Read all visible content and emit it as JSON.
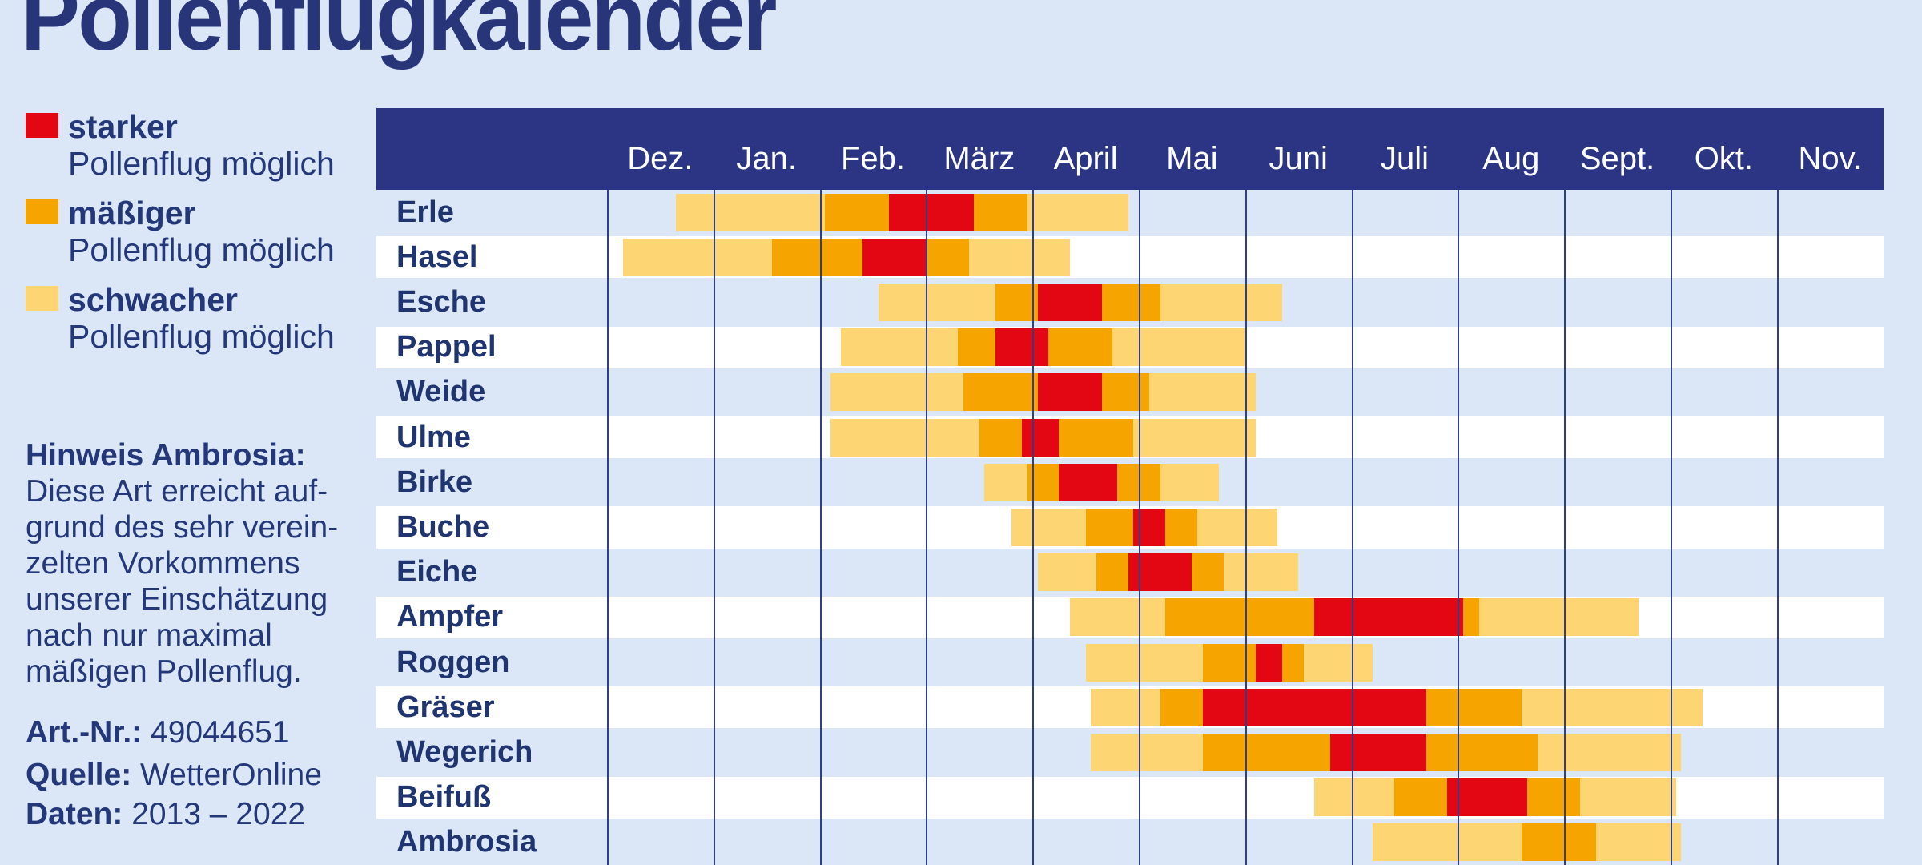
{
  "title": "Pollenflugkalender",
  "legend": {
    "items": [
      {
        "id": "stark",
        "label": "starker",
        "sub": "Pollenflug möglich",
        "color": "#e30613"
      },
      {
        "id": "maessig",
        "label": "mäßiger",
        "sub": "Pollenflug möglich",
        "color": "#f6a500"
      },
      {
        "id": "schwach",
        "label": "schwacher",
        "sub": "Pollenflug möglich",
        "color": "#fdd572"
      }
    ]
  },
  "note": {
    "heading": "Hinweis Ambrosia:",
    "lines": [
      "Diese Art erreicht auf-",
      "grund des sehr verein-",
      "zelten Vorkommens",
      "unserer Einschätzung",
      "nach nur maximal",
      "mäßigen Pollenflug."
    ]
  },
  "meta": [
    {
      "label": "Art.-Nr.:",
      "value": "49044651"
    },
    {
      "label": "Quelle:",
      "value": "WetterOnline"
    },
    {
      "label": "Daten:",
      "value": "2013 – 2022"
    }
  ],
  "colors": {
    "page_background": "#dbe7f6",
    "row_alt_white": "#ffffff",
    "header_band": "#2b3583",
    "grid_line": "#2e3e8c",
    "text": "#243879",
    "levels": {
      "stark": "#e30613",
      "maessig": "#f6a500",
      "schwach": "#fdd572"
    }
  },
  "chart_data": {
    "type": "timeline",
    "title": "Pollenflugkalender",
    "unit": "month positions: 0 = start of Dez., 12 = end of Nov.; levels: schwach (yellow), maessig (orange), stark (red)",
    "months": [
      "Dez.",
      "Jan.",
      "Feb.",
      "März",
      "April",
      "Mai",
      "Juni",
      "Juli",
      "Aug",
      "Sept.",
      "Okt.",
      "Nov."
    ],
    "rows": [
      {
        "name": "Erle",
        "segments": [
          {
            "level": "schwach",
            "start": 0.65,
            "end": 2.05
          },
          {
            "level": "maessig",
            "start": 2.05,
            "end": 2.65
          },
          {
            "level": "stark",
            "start": 2.65,
            "end": 3.45
          },
          {
            "level": "maessig",
            "start": 3.45,
            "end": 3.95
          },
          {
            "level": "schwach",
            "start": 3.95,
            "end": 4.9
          }
        ]
      },
      {
        "name": "Hasel",
        "segments": [
          {
            "level": "schwach",
            "start": 0.15,
            "end": 1.55
          },
          {
            "level": "maessig",
            "start": 1.55,
            "end": 2.4
          },
          {
            "level": "stark",
            "start": 2.4,
            "end": 3.0
          },
          {
            "level": "maessig",
            "start": 3.0,
            "end": 3.4
          },
          {
            "level": "schwach",
            "start": 3.4,
            "end": 4.35
          }
        ]
      },
      {
        "name": "Esche",
        "segments": [
          {
            "level": "schwach",
            "start": 2.55,
            "end": 3.65
          },
          {
            "level": "maessig",
            "start": 3.65,
            "end": 4.05
          },
          {
            "level": "stark",
            "start": 4.05,
            "end": 4.65
          },
          {
            "level": "maessig",
            "start": 4.65,
            "end": 5.2
          },
          {
            "level": "schwach",
            "start": 5.2,
            "end": 6.35
          }
        ]
      },
      {
        "name": "Pappel",
        "segments": [
          {
            "level": "schwach",
            "start": 2.2,
            "end": 3.3
          },
          {
            "level": "maessig",
            "start": 3.3,
            "end": 3.65
          },
          {
            "level": "stark",
            "start": 3.65,
            "end": 4.15
          },
          {
            "level": "maessig",
            "start": 4.15,
            "end": 4.75
          },
          {
            "level": "schwach",
            "start": 4.75,
            "end": 6.0
          }
        ]
      },
      {
        "name": "Weide",
        "segments": [
          {
            "level": "schwach",
            "start": 2.1,
            "end": 3.35
          },
          {
            "level": "maessig",
            "start": 3.35,
            "end": 4.05
          },
          {
            "level": "stark",
            "start": 4.05,
            "end": 4.65
          },
          {
            "level": "maessig",
            "start": 4.65,
            "end": 5.1
          },
          {
            "level": "schwach",
            "start": 5.1,
            "end": 6.1
          }
        ]
      },
      {
        "name": "Ulme",
        "segments": [
          {
            "level": "schwach",
            "start": 2.1,
            "end": 3.5
          },
          {
            "level": "maessig",
            "start": 3.5,
            "end": 3.9
          },
          {
            "level": "stark",
            "start": 3.9,
            "end": 4.25
          },
          {
            "level": "maessig",
            "start": 4.25,
            "end": 4.95
          },
          {
            "level": "schwach",
            "start": 4.95,
            "end": 6.1
          }
        ]
      },
      {
        "name": "Birke",
        "segments": [
          {
            "level": "schwach",
            "start": 3.55,
            "end": 3.95
          },
          {
            "level": "maessig",
            "start": 3.95,
            "end": 4.25
          },
          {
            "level": "stark",
            "start": 4.25,
            "end": 4.8
          },
          {
            "level": "maessig",
            "start": 4.8,
            "end": 5.2
          },
          {
            "level": "schwach",
            "start": 5.2,
            "end": 5.75
          }
        ]
      },
      {
        "name": "Buche",
        "segments": [
          {
            "level": "schwach",
            "start": 3.8,
            "end": 4.5
          },
          {
            "level": "maessig",
            "start": 4.5,
            "end": 4.95
          },
          {
            "level": "stark",
            "start": 4.95,
            "end": 5.25
          },
          {
            "level": "maessig",
            "start": 5.25,
            "end": 5.55
          },
          {
            "level": "schwach",
            "start": 5.55,
            "end": 6.3
          }
        ]
      },
      {
        "name": "Eiche",
        "segments": [
          {
            "level": "schwach",
            "start": 4.05,
            "end": 4.6
          },
          {
            "level": "maessig",
            "start": 4.6,
            "end": 4.9
          },
          {
            "level": "stark",
            "start": 4.9,
            "end": 5.5
          },
          {
            "level": "maessig",
            "start": 5.5,
            "end": 5.8
          },
          {
            "level": "schwach",
            "start": 5.8,
            "end": 6.5
          }
        ]
      },
      {
        "name": "Ampfer",
        "segments": [
          {
            "level": "schwach",
            "start": 4.35,
            "end": 5.25
          },
          {
            "level": "maessig",
            "start": 5.25,
            "end": 6.65
          },
          {
            "level": "stark",
            "start": 6.65,
            "end": 8.05
          },
          {
            "level": "maessig",
            "start": 8.05,
            "end": 8.2
          },
          {
            "level": "schwach",
            "start": 8.2,
            "end": 9.7
          }
        ]
      },
      {
        "name": "Roggen",
        "segments": [
          {
            "level": "schwach",
            "start": 4.5,
            "end": 5.6
          },
          {
            "level": "maessig",
            "start": 5.6,
            "end": 6.1
          },
          {
            "level": "stark",
            "start": 6.1,
            "end": 6.35
          },
          {
            "level": "maessig",
            "start": 6.35,
            "end": 6.55
          },
          {
            "level": "schwach",
            "start": 6.55,
            "end": 7.2
          }
        ]
      },
      {
        "name": "Gräser",
        "segments": [
          {
            "level": "schwach",
            "start": 4.55,
            "end": 5.2
          },
          {
            "level": "maessig",
            "start": 5.2,
            "end": 5.6
          },
          {
            "level": "stark",
            "start": 5.6,
            "end": 7.7
          },
          {
            "level": "maessig",
            "start": 7.7,
            "end": 8.6
          },
          {
            "level": "schwach",
            "start": 8.6,
            "end": 10.3
          }
        ]
      },
      {
        "name": "Wegerich",
        "segments": [
          {
            "level": "schwach",
            "start": 4.55,
            "end": 5.6
          },
          {
            "level": "maessig",
            "start": 5.6,
            "end": 6.8
          },
          {
            "level": "stark",
            "start": 6.8,
            "end": 7.7
          },
          {
            "level": "maessig",
            "start": 7.7,
            "end": 8.75
          },
          {
            "level": "schwach",
            "start": 8.75,
            "end": 10.1
          }
        ]
      },
      {
        "name": "Beifuß",
        "segments": [
          {
            "level": "schwach",
            "start": 6.65,
            "end": 7.4
          },
          {
            "level": "maessig",
            "start": 7.4,
            "end": 7.9
          },
          {
            "level": "stark",
            "start": 7.9,
            "end": 8.65
          },
          {
            "level": "maessig",
            "start": 8.65,
            "end": 9.15
          },
          {
            "level": "schwach",
            "start": 9.15,
            "end": 10.05
          }
        ]
      },
      {
        "name": "Ambrosia",
        "segments": [
          {
            "level": "schwach",
            "start": 7.2,
            "end": 8.6
          },
          {
            "level": "maessig",
            "start": 8.6,
            "end": 9.3
          },
          {
            "level": "schwach",
            "start": 9.3,
            "end": 10.1
          }
        ]
      }
    ]
  }
}
